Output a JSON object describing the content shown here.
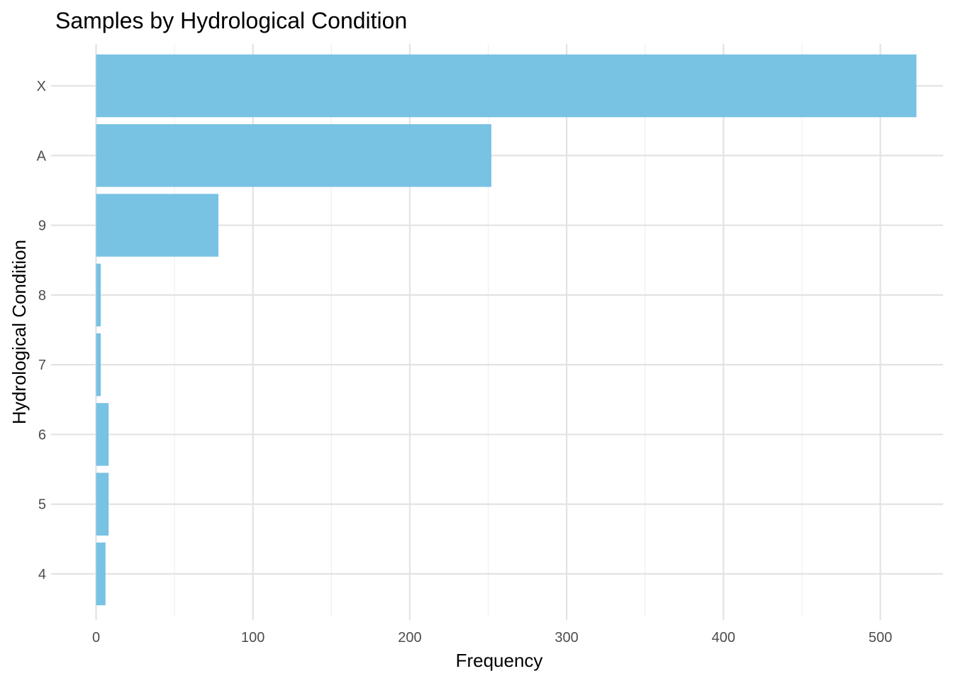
{
  "chart_data": {
    "type": "bar",
    "orientation": "horizontal",
    "title": "Samples by Hydrological Condition",
    "xlabel": "Frequency",
    "ylabel": "Hydrological Condition",
    "categories": [
      "X",
      "A",
      "9",
      "8",
      "7",
      "6",
      "5",
      "4"
    ],
    "values": [
      523,
      252,
      78,
      3,
      3,
      8,
      8,
      6
    ],
    "xlim": [
      -26,
      540
    ],
    "x_ticks": [
      0,
      100,
      200,
      300,
      400,
      500
    ],
    "x_minor_ticks": [
      50,
      150,
      250,
      350,
      450
    ],
    "grid": true,
    "bar_color": "#78C2E4"
  }
}
